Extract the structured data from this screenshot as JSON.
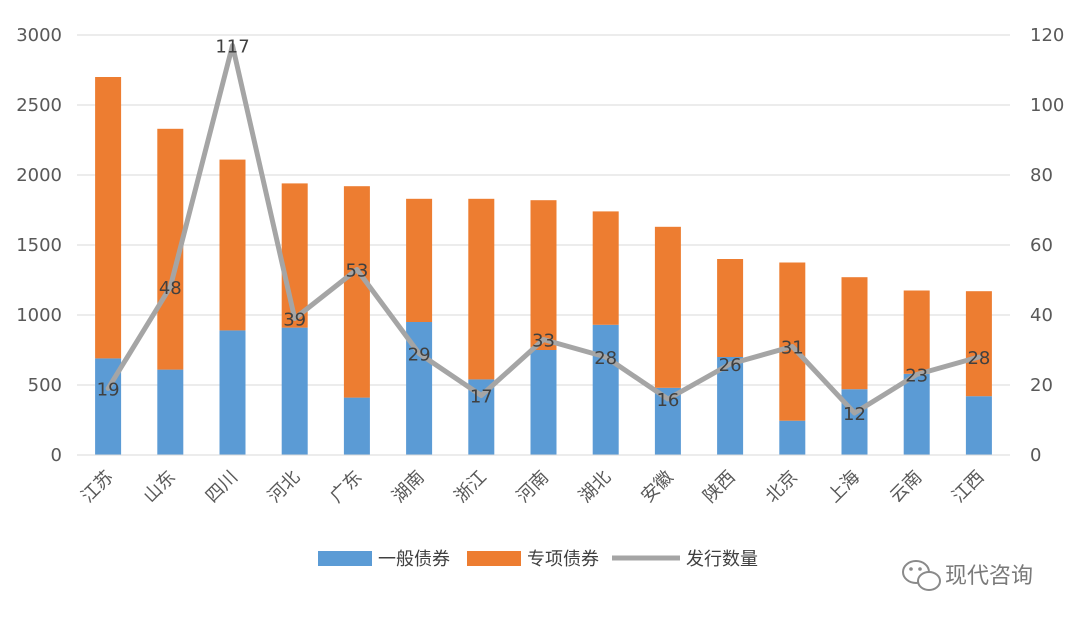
{
  "chart_data": {
    "type": "bar",
    "stacked": true,
    "categories": [
      "江苏",
      "山东",
      "四川",
      "河北",
      "广东",
      "湖南",
      "浙江",
      "河南",
      "湖北",
      "安徽",
      "陕西",
      "北京",
      "上海",
      "云南",
      "江西"
    ],
    "series": [
      {
        "name": "一般债券",
        "axis": "left",
        "color": "#5b9bd5",
        "values": [
          690,
          610,
          890,
          910,
          410,
          950,
          540,
          750,
          930,
          480,
          700,
          245,
          470,
          580,
          420
        ]
      },
      {
        "name": "专项债券",
        "axis": "left",
        "color": "#ed7d31",
        "values": [
          2010,
          1720,
          1220,
          1030,
          1510,
          880,
          1290,
          1070,
          810,
          1150,
          700,
          1130,
          800,
          595,
          750
        ]
      },
      {
        "name": "发行数量",
        "axis": "right",
        "type": "line",
        "color": "#a5a5a5",
        "values": [
          19,
          48,
          117,
          39,
          53,
          29,
          17,
          33,
          28,
          16,
          26,
          31,
          12,
          23,
          28
        ]
      }
    ],
    "ylim": [
      0,
      3000
    ],
    "yticks": [
      "0",
      "500",
      "1000",
      "1500",
      "2000",
      "2500",
      "3000"
    ],
    "y2lim": [
      0,
      120
    ],
    "y2ticks": [
      "0",
      "20",
      "40",
      "60",
      "80",
      "100",
      "120"
    ],
    "data_labels": [
      "19",
      "48",
      "117",
      "39",
      "53",
      "29",
      "17",
      "33",
      "28",
      "16",
      "26",
      "31",
      "12",
      "23",
      "28"
    ],
    "legend": [
      "一般债券",
      "专项债券",
      "发行数量"
    ],
    "legend_position": "bottom",
    "grid": true
  },
  "watermark": {
    "text": "现代咨询",
    "icon": "wechat-icon"
  }
}
